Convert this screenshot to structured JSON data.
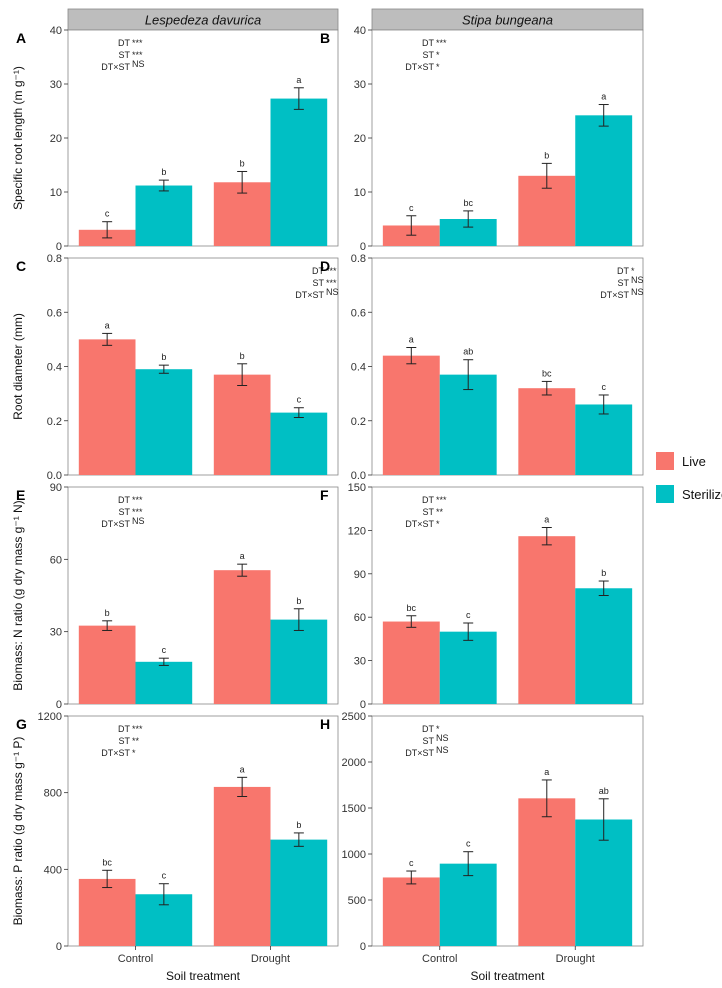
{
  "strip_titles": [
    "Lespedeza davurica",
    "Stipa bungeana"
  ],
  "x_axis_label": "Soil treatment",
  "legend": [
    {
      "label": "Live",
      "color": "#F8766D"
    },
    {
      "label": "Sterilized",
      "color": "#00BFC4"
    }
  ],
  "colors": {
    "live": "#F8766D",
    "sterilized": "#00BFC4"
  },
  "chart_data": [
    {
      "panel": "A",
      "type": "bar",
      "ylabel": "Specific root length (m g⁻¹)",
      "ylim": [
        0,
        40
      ],
      "yticks": [
        0,
        10,
        20,
        30,
        40
      ],
      "categories": [
        "Control",
        "Drought"
      ],
      "series": [
        {
          "name": "Live",
          "values": [
            3.0,
            11.8
          ],
          "errors": [
            1.5,
            2.0
          ],
          "letters": [
            "c",
            "b"
          ]
        },
        {
          "name": "Sterilized",
          "values": [
            11.2,
            27.3
          ],
          "errors": [
            1.0,
            2.0
          ],
          "letters": [
            "b",
            "a"
          ]
        }
      ],
      "stats": [
        {
          "term": "DT",
          "sig": "***"
        },
        {
          "term": "ST",
          "sig": "***"
        },
        {
          "term": "DT×ST",
          "sig": "NS"
        }
      ],
      "stats_pos": "left"
    },
    {
      "panel": "B",
      "type": "bar",
      "ylabel": "",
      "ylim": [
        0,
        40
      ],
      "yticks": [
        0,
        10,
        20,
        30,
        40
      ],
      "categories": [
        "Control",
        "Drought"
      ],
      "series": [
        {
          "name": "Live",
          "values": [
            3.8,
            13.0
          ],
          "errors": [
            1.8,
            2.3
          ],
          "letters": [
            "c",
            "b"
          ]
        },
        {
          "name": "Sterilized",
          "values": [
            5.0,
            24.2
          ],
          "errors": [
            1.5,
            2.0
          ],
          "letters": [
            "bc",
            "a"
          ]
        }
      ],
      "stats": [
        {
          "term": "DT",
          "sig": "***"
        },
        {
          "term": "ST",
          "sig": "*"
        },
        {
          "term": "DT×ST",
          "sig": "*"
        }
      ],
      "stats_pos": "left"
    },
    {
      "panel": "C",
      "type": "bar",
      "ylabel": "Root diameter (mm)",
      "ylim": [
        0,
        0.8
      ],
      "yticks": [
        0.0,
        0.2,
        0.4,
        0.6,
        0.8
      ],
      "categories": [
        "Control",
        "Drought"
      ],
      "series": [
        {
          "name": "Live",
          "values": [
            0.5,
            0.37
          ],
          "errors": [
            0.022,
            0.04
          ],
          "letters": [
            "a",
            "b"
          ]
        },
        {
          "name": "Sterilized",
          "values": [
            0.39,
            0.23
          ],
          "errors": [
            0.015,
            0.018
          ],
          "letters": [
            "b",
            "c"
          ]
        }
      ],
      "stats": [
        {
          "term": "DT",
          "sig": "***"
        },
        {
          "term": "ST",
          "sig": "***"
        },
        {
          "term": "DT×ST",
          "sig": "NS"
        }
      ],
      "stats_pos": "right"
    },
    {
      "panel": "D",
      "type": "bar",
      "ylabel": "",
      "ylim": [
        0,
        0.8
      ],
      "yticks": [
        0.0,
        0.2,
        0.4,
        0.6,
        0.8
      ],
      "categories": [
        "Control",
        "Drought"
      ],
      "series": [
        {
          "name": "Live",
          "values": [
            0.44,
            0.32
          ],
          "errors": [
            0.03,
            0.025
          ],
          "letters": [
            "a",
            "bc"
          ]
        },
        {
          "name": "Sterilized",
          "values": [
            0.37,
            0.26
          ],
          "errors": [
            0.055,
            0.035
          ],
          "letters": [
            "ab",
            "c"
          ]
        }
      ],
      "stats": [
        {
          "term": "DT",
          "sig": "*"
        },
        {
          "term": "ST",
          "sig": "NS"
        },
        {
          "term": "DT×ST",
          "sig": "NS"
        }
      ],
      "stats_pos": "right"
    },
    {
      "panel": "E",
      "type": "bar",
      "ylabel": "Biomass: N ratio (g dry mass g⁻¹ N)",
      "ylim": [
        0,
        90
      ],
      "yticks": [
        0,
        30,
        60,
        90
      ],
      "categories": [
        "Control",
        "Drought"
      ],
      "series": [
        {
          "name": "Live",
          "values": [
            32.5,
            55.5
          ],
          "errors": [
            2.0,
            2.5
          ],
          "letters": [
            "b",
            "a"
          ]
        },
        {
          "name": "Sterilized",
          "values": [
            17.5,
            35.0
          ],
          "errors": [
            1.5,
            4.5
          ],
          "letters": [
            "c",
            "b"
          ]
        }
      ],
      "stats": [
        {
          "term": "DT",
          "sig": "***"
        },
        {
          "term": "ST",
          "sig": "***"
        },
        {
          "term": "DT×ST",
          "sig": "NS"
        }
      ],
      "stats_pos": "left"
    },
    {
      "panel": "F",
      "type": "bar",
      "ylabel": "",
      "ylim": [
        0,
        150
      ],
      "yticks": [
        0,
        30,
        60,
        90,
        120,
        150
      ],
      "categories": [
        "Control",
        "Drought"
      ],
      "series": [
        {
          "name": "Live",
          "values": [
            57,
            116
          ],
          "errors": [
            4,
            6
          ],
          "letters": [
            "bc",
            "a"
          ]
        },
        {
          "name": "Sterilized",
          "values": [
            50,
            80
          ],
          "errors": [
            6,
            5
          ],
          "letters": [
            "c",
            "b"
          ]
        }
      ],
      "stats": [
        {
          "term": "DT",
          "sig": "***"
        },
        {
          "term": "ST",
          "sig": "**"
        },
        {
          "term": "DT×ST",
          "sig": "*"
        }
      ],
      "stats_pos": "left"
    },
    {
      "panel": "G",
      "type": "bar",
      "ylabel": "Biomass: P ratio (g dry mass g⁻¹ P)",
      "ylim": [
        0,
        1200
      ],
      "yticks": [
        0,
        400,
        800,
        1200
      ],
      "categories": [
        "Control",
        "Drought"
      ],
      "series": [
        {
          "name": "Live",
          "values": [
            350,
            830
          ],
          "errors": [
            45,
            50
          ],
          "letters": [
            "bc",
            "a"
          ]
        },
        {
          "name": "Sterilized",
          "values": [
            270,
            555
          ],
          "errors": [
            55,
            35
          ],
          "letters": [
            "c",
            "b"
          ]
        }
      ],
      "stats": [
        {
          "term": "DT",
          "sig": "***"
        },
        {
          "term": "ST",
          "sig": "**"
        },
        {
          "term": "DT×ST",
          "sig": "*"
        }
      ],
      "stats_pos": "left"
    },
    {
      "panel": "H",
      "type": "bar",
      "ylabel": "",
      "ylim": [
        0,
        2500
      ],
      "yticks": [
        0,
        500,
        1000,
        1500,
        2000,
        2500
      ],
      "categories": [
        "Control",
        "Drought"
      ],
      "series": [
        {
          "name": "Live",
          "values": [
            745,
            1605
          ],
          "errors": [
            70,
            200
          ],
          "letters": [
            "c",
            "a"
          ]
        },
        {
          "name": "Sterilized",
          "values": [
            895,
            1375
          ],
          "errors": [
            130,
            225
          ],
          "letters": [
            "c",
            "ab"
          ]
        }
      ],
      "stats": [
        {
          "term": "DT",
          "sig": "*"
        },
        {
          "term": "ST",
          "sig": "NS"
        },
        {
          "term": "DT×ST",
          "sig": "NS"
        }
      ],
      "stats_pos": "left"
    }
  ]
}
